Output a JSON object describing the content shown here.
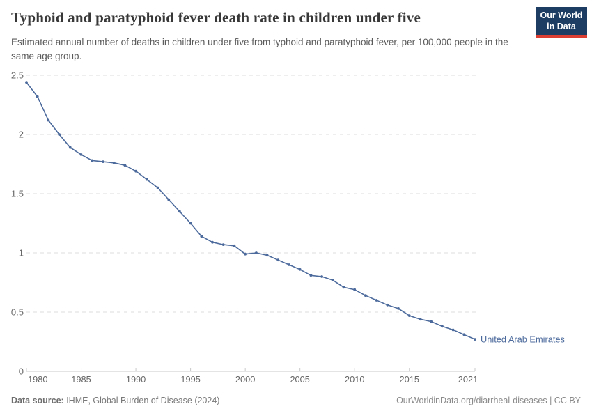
{
  "header": {
    "title": "Typhoid and paratyphoid fever death rate in children under five",
    "subtitle": "Estimated annual number of deaths in children under five from typhoid and paratyphoid fever, per 100,000 people in the same age group.",
    "logo": {
      "line1": "Our World",
      "line2": "in Data",
      "bg_color": "#1d3d63",
      "accent_color": "#dc3e31"
    }
  },
  "footer": {
    "datasource_label": "Data source:",
    "datasource_value": " IHME, Global Burden of Disease (2024)",
    "credit": "OurWorldinData.org/diarrheal-diseases | CC BY"
  },
  "chart_data": {
    "type": "line",
    "title": "Typhoid and paratyphoid fever death rate in children under five",
    "subtitle": "Estimated annual number of deaths in children under five from typhoid and paratyphoid fever, per 100,000 people in the same age group.",
    "xlabel": "",
    "ylabel": "",
    "x": [
      1980,
      1981,
      1982,
      1983,
      1984,
      1985,
      1986,
      1987,
      1988,
      1989,
      1990,
      1991,
      1992,
      1993,
      1994,
      1995,
      1996,
      1997,
      1998,
      1999,
      2000,
      2001,
      2002,
      2003,
      2004,
      2005,
      2006,
      2007,
      2008,
      2009,
      2010,
      2011,
      2012,
      2013,
      2014,
      2015,
      2016,
      2017,
      2018,
      2019,
      2020,
      2021
    ],
    "series": [
      {
        "name": "United Arab Emirates",
        "color": "#4c6a9c",
        "values": [
          2.44,
          2.32,
          2.12,
          2.0,
          1.89,
          1.83,
          1.78,
          1.77,
          1.76,
          1.74,
          1.69,
          1.62,
          1.55,
          1.45,
          1.35,
          1.25,
          1.14,
          1.09,
          1.07,
          1.06,
          0.99,
          1.0,
          0.98,
          0.94,
          0.9,
          0.86,
          0.81,
          0.8,
          0.77,
          0.71,
          0.69,
          0.64,
          0.6,
          0.56,
          0.53,
          0.47,
          0.44,
          0.42,
          0.38,
          0.35,
          0.31,
          0.27
        ]
      }
    ],
    "xlim": [
      1980,
      2021
    ],
    "ylim": [
      0,
      2.5
    ],
    "yticks": [
      0,
      0.5,
      1,
      1.5,
      2,
      2.5
    ],
    "ytick_labels": [
      "0",
      "0.5",
      "1",
      "1.5",
      "2",
      "2.5"
    ],
    "xticks": [
      1980,
      1985,
      1990,
      1995,
      2000,
      2005,
      2010,
      2015,
      2021
    ],
    "grid": "horizontal-dashed",
    "legend_position": "end-of-line-label",
    "colors": {
      "grid": "#dedede",
      "axis": "#c8c8c8",
      "tick_text": "#666666",
      "series_label_text": "#4c6a9c"
    }
  }
}
